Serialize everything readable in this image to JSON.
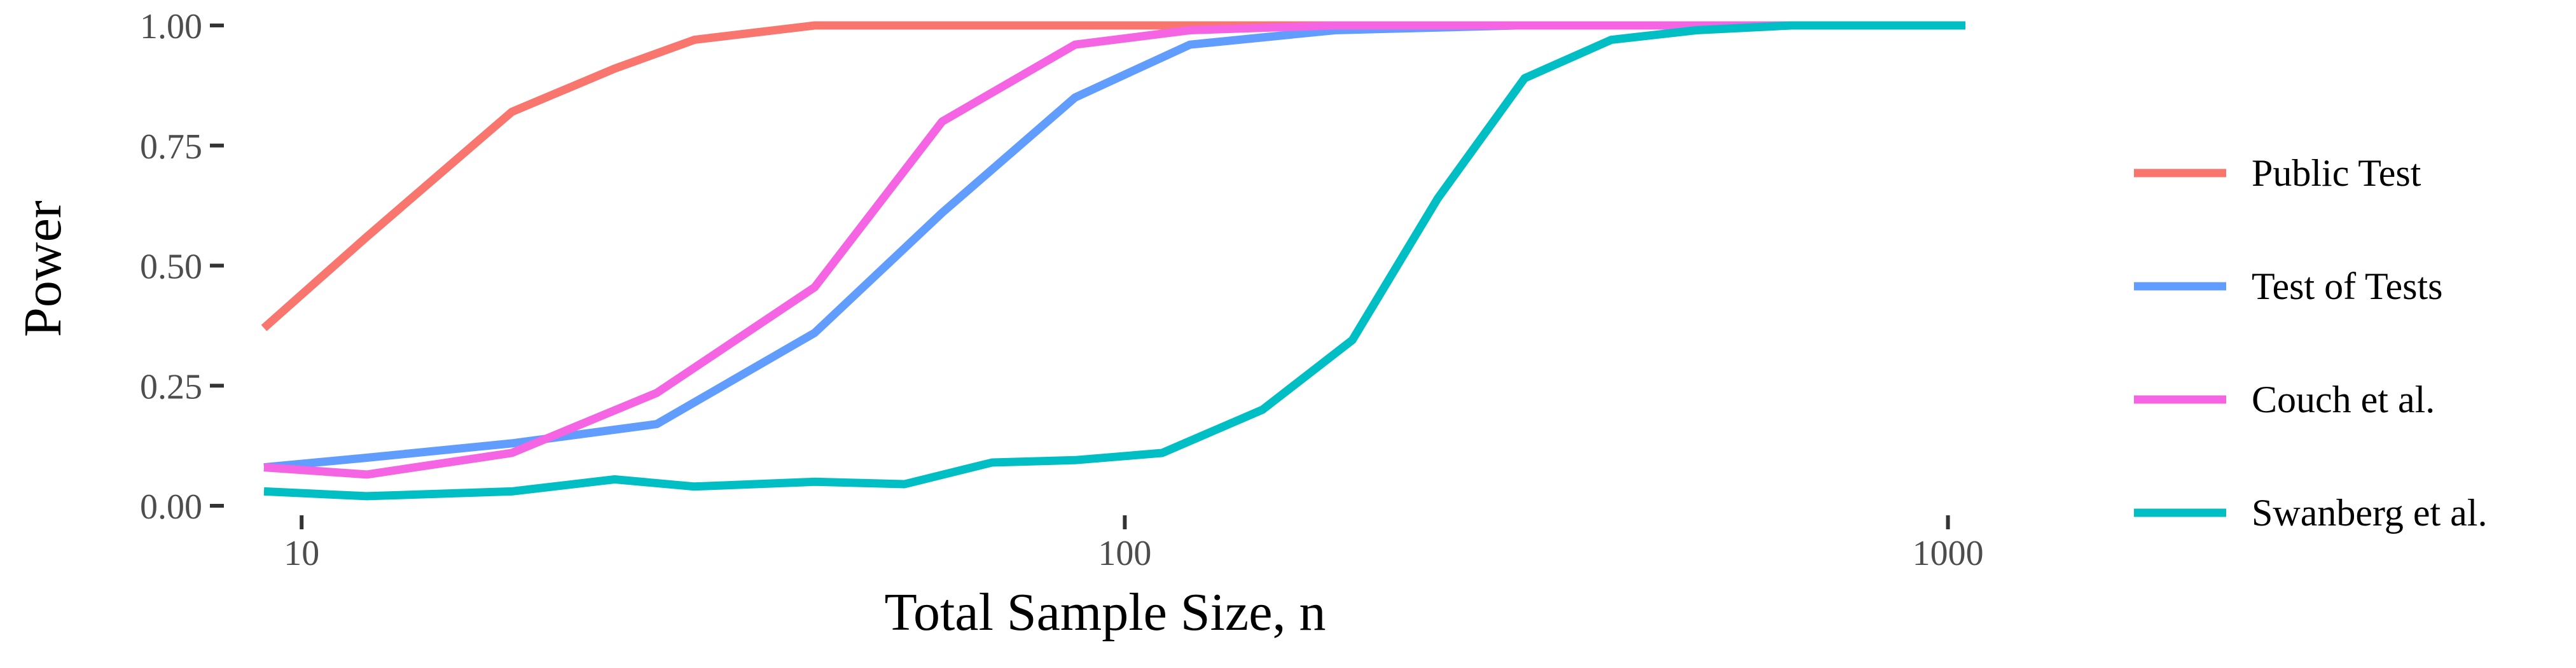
{
  "chart_data": {
    "type": "line",
    "xlabel": "Total Sample Size, n",
    "ylabel": "Power",
    "x_scale": "log10",
    "xlim": [
      9,
      1050
    ],
    "ylim": [
      0,
      1
    ],
    "x_ticks": [
      10,
      100,
      1000
    ],
    "x_tick_labels": [
      "10",
      "100",
      "1000"
    ],
    "y_ticks": [
      0,
      0.25,
      0.5,
      0.75,
      1
    ],
    "y_tick_labels": [
      "0.00",
      "0.25",
      "0.50",
      "0.75",
      "1.00"
    ],
    "grid": false,
    "legend_position": "right",
    "series": [
      {
        "name": "Public Test",
        "color": "#F8766D",
        "points": [
          [
            9,
            0.37
          ],
          [
            12,
            0.56
          ],
          [
            18,
            0.82
          ],
          [
            24,
            0.91
          ],
          [
            30,
            0.97
          ],
          [
            42,
            1.0
          ],
          [
            60,
            1.0
          ],
          [
            90,
            1.0
          ],
          [
            120,
            1.0
          ],
          [
            180,
            1.0
          ],
          [
            300,
            1.0
          ],
          [
            600,
            1.0
          ],
          [
            1050,
            1.0
          ]
        ]
      },
      {
        "name": "Test of Tests",
        "color": "#619CFF",
        "points": [
          [
            9,
            0.08
          ],
          [
            12,
            0.1
          ],
          [
            18,
            0.13
          ],
          [
            27,
            0.17
          ],
          [
            42,
            0.36
          ],
          [
            60,
            0.61
          ],
          [
            87,
            0.85
          ],
          [
            120,
            0.96
          ],
          [
            180,
            0.99
          ],
          [
            300,
            1.0
          ],
          [
            600,
            1.0
          ],
          [
            1050,
            1.0
          ]
        ]
      },
      {
        "name": "Couch et al.",
        "color": "#F564E3",
        "points": [
          [
            9,
            0.08
          ],
          [
            12,
            0.065
          ],
          [
            18,
            0.11
          ],
          [
            27,
            0.235
          ],
          [
            42,
            0.455
          ],
          [
            60,
            0.8
          ],
          [
            87,
            0.96
          ],
          [
            120,
            0.99
          ],
          [
            180,
            1.0
          ],
          [
            300,
            1.0
          ],
          [
            600,
            1.0
          ],
          [
            1050,
            1.0
          ]
        ]
      },
      {
        "name": "Swanberg et al.",
        "color": "#00BFC4",
        "points": [
          [
            9,
            0.03
          ],
          [
            12,
            0.02
          ],
          [
            18,
            0.03
          ],
          [
            24,
            0.055
          ],
          [
            30,
            0.04
          ],
          [
            42,
            0.05
          ],
          [
            54,
            0.045
          ],
          [
            69,
            0.09
          ],
          [
            87,
            0.095
          ],
          [
            111,
            0.11
          ],
          [
            147,
            0.2
          ],
          [
            189,
            0.345
          ],
          [
            240,
            0.64
          ],
          [
            306,
            0.89
          ],
          [
            390,
            0.97
          ],
          [
            495,
            0.99
          ],
          [
            645,
            1.0
          ],
          [
            810,
            1.0
          ],
          [
            1050,
            1.0
          ]
        ]
      }
    ]
  }
}
